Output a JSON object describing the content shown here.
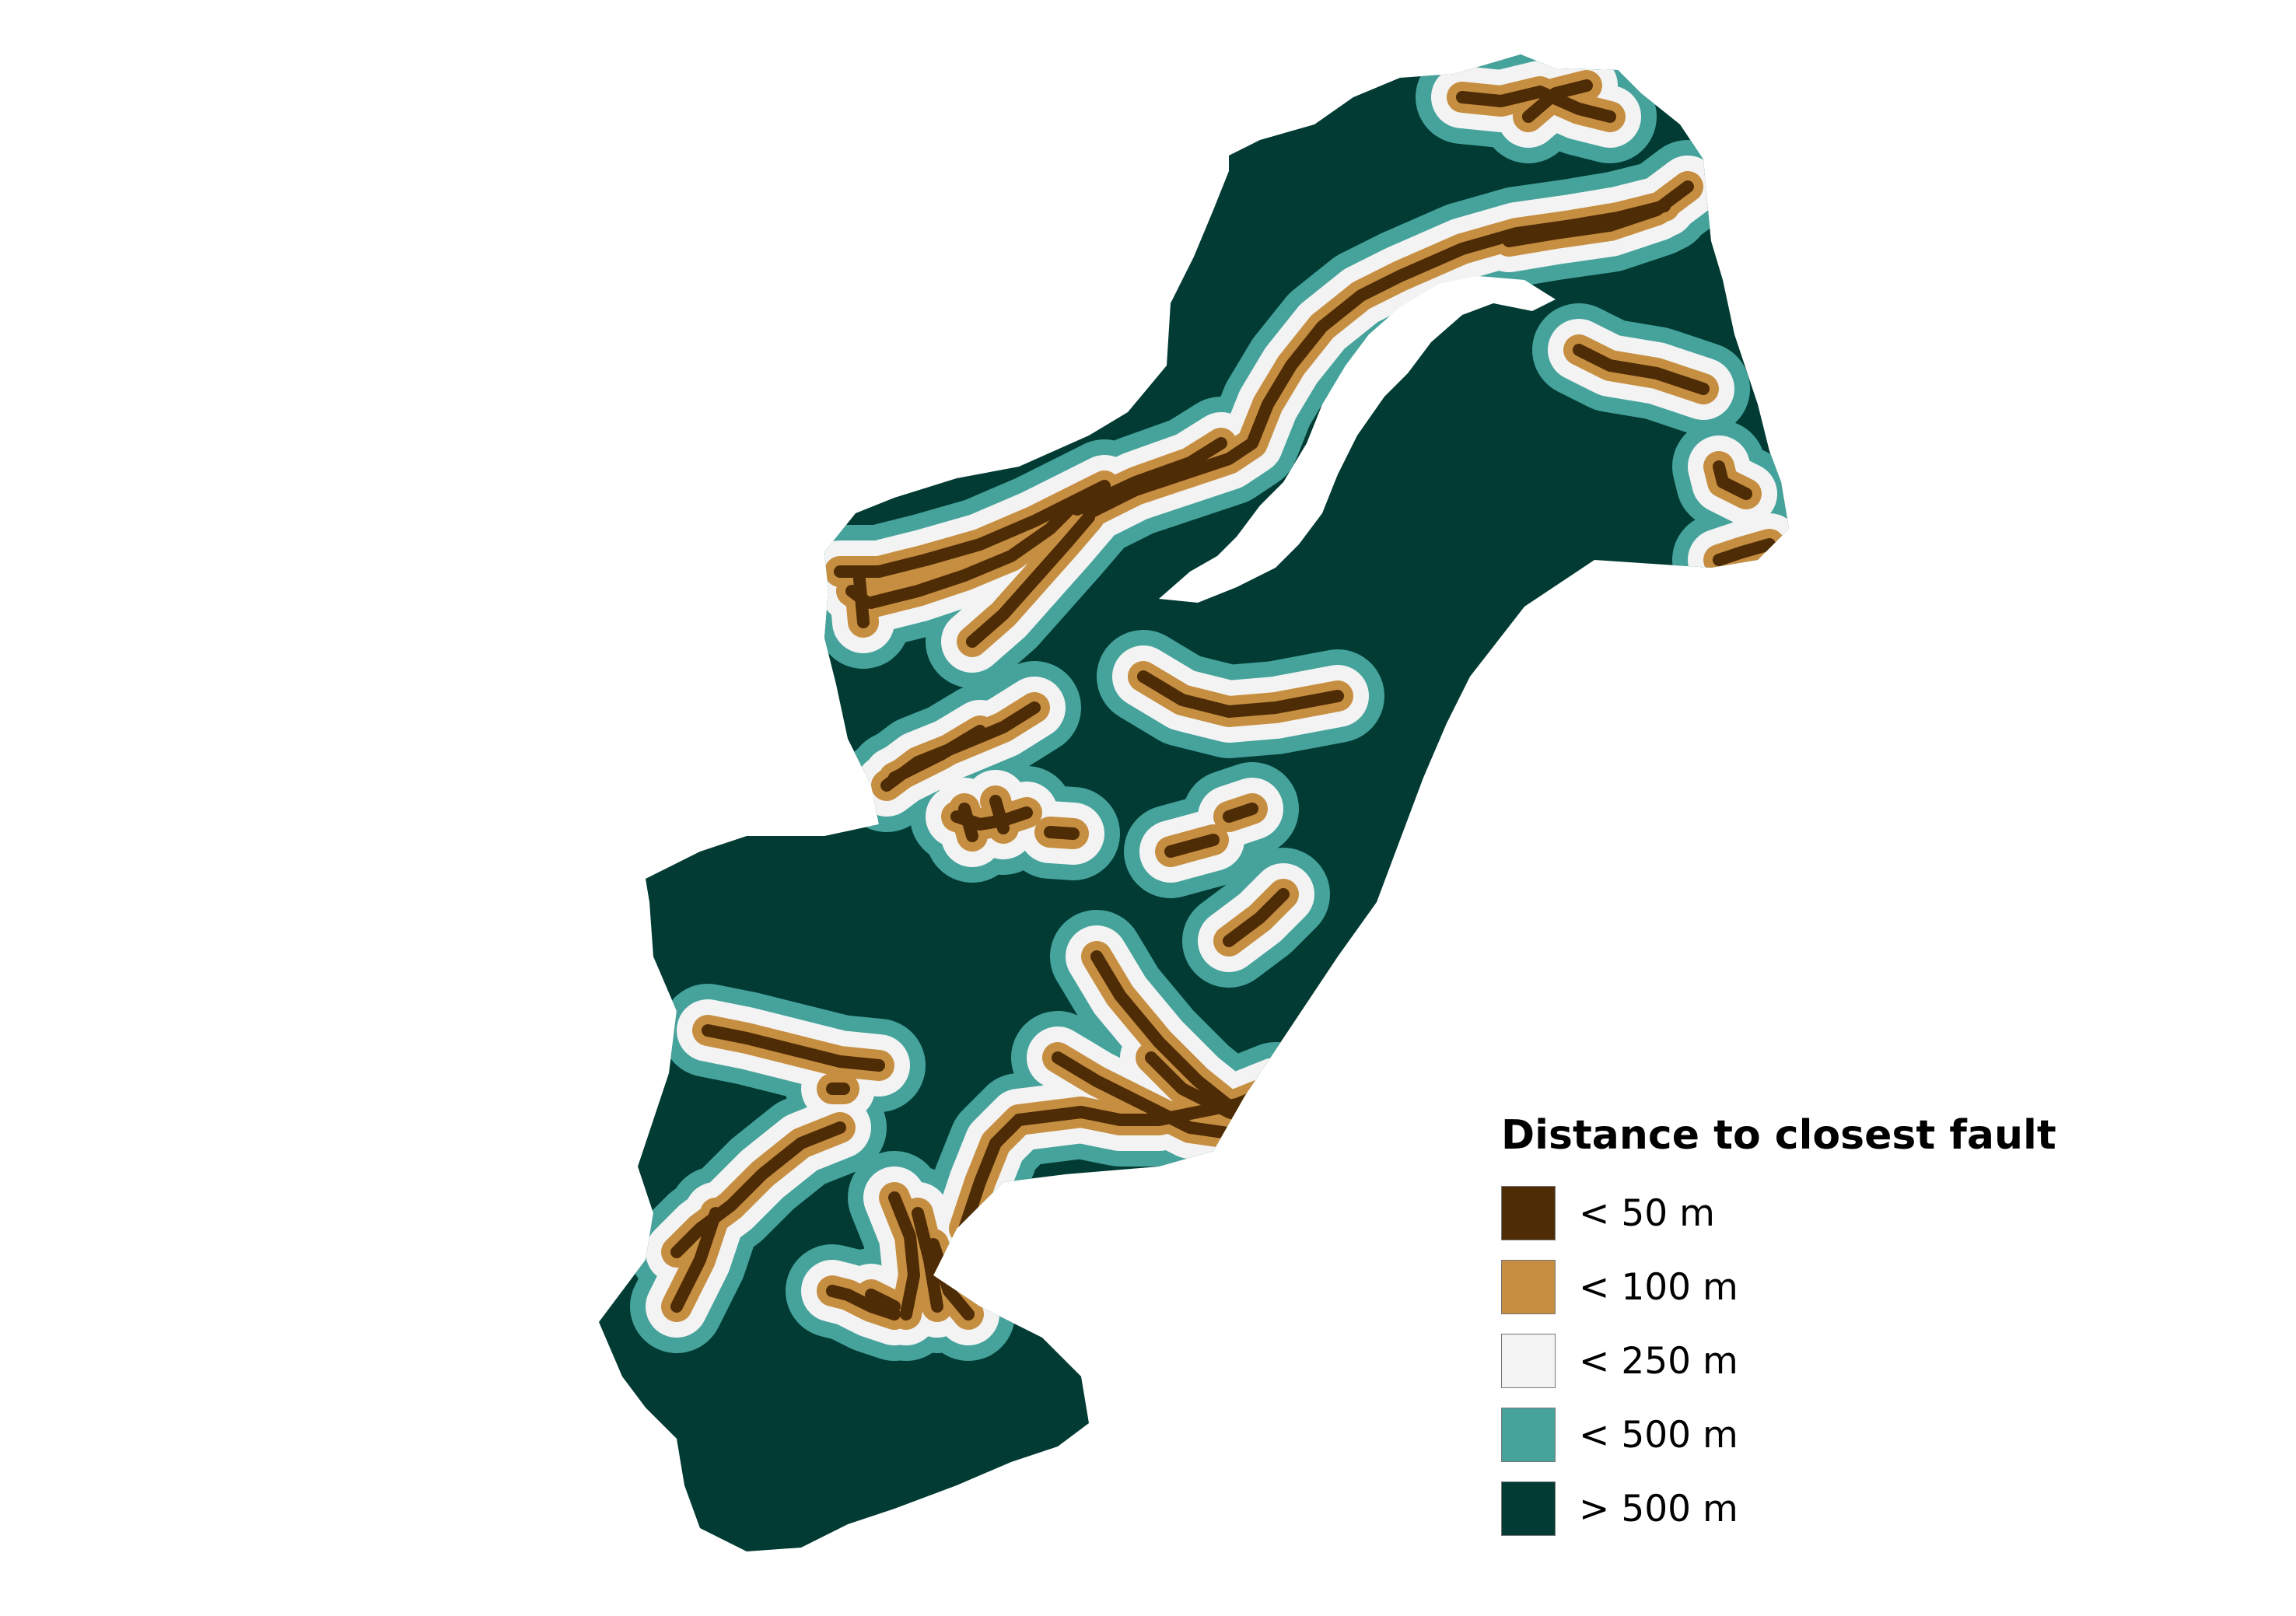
{
  "legend": {
    "title": "Distance to closest fault",
    "items": [
      {
        "label": "< 50 m",
        "color": "#4e2c06"
      },
      {
        "label": "< 100 m",
        "color": "#c68e41"
      },
      {
        "label": "< 250 m",
        "color": "#f3f3f3"
      },
      {
        "label": "< 500 m",
        "color": "#45a39c"
      },
      {
        "label": "> 500 m",
        "color": "#013b33"
      }
    ]
  },
  "colors": {
    "background": "#ffffff",
    "lake": "#ffffff"
  }
}
